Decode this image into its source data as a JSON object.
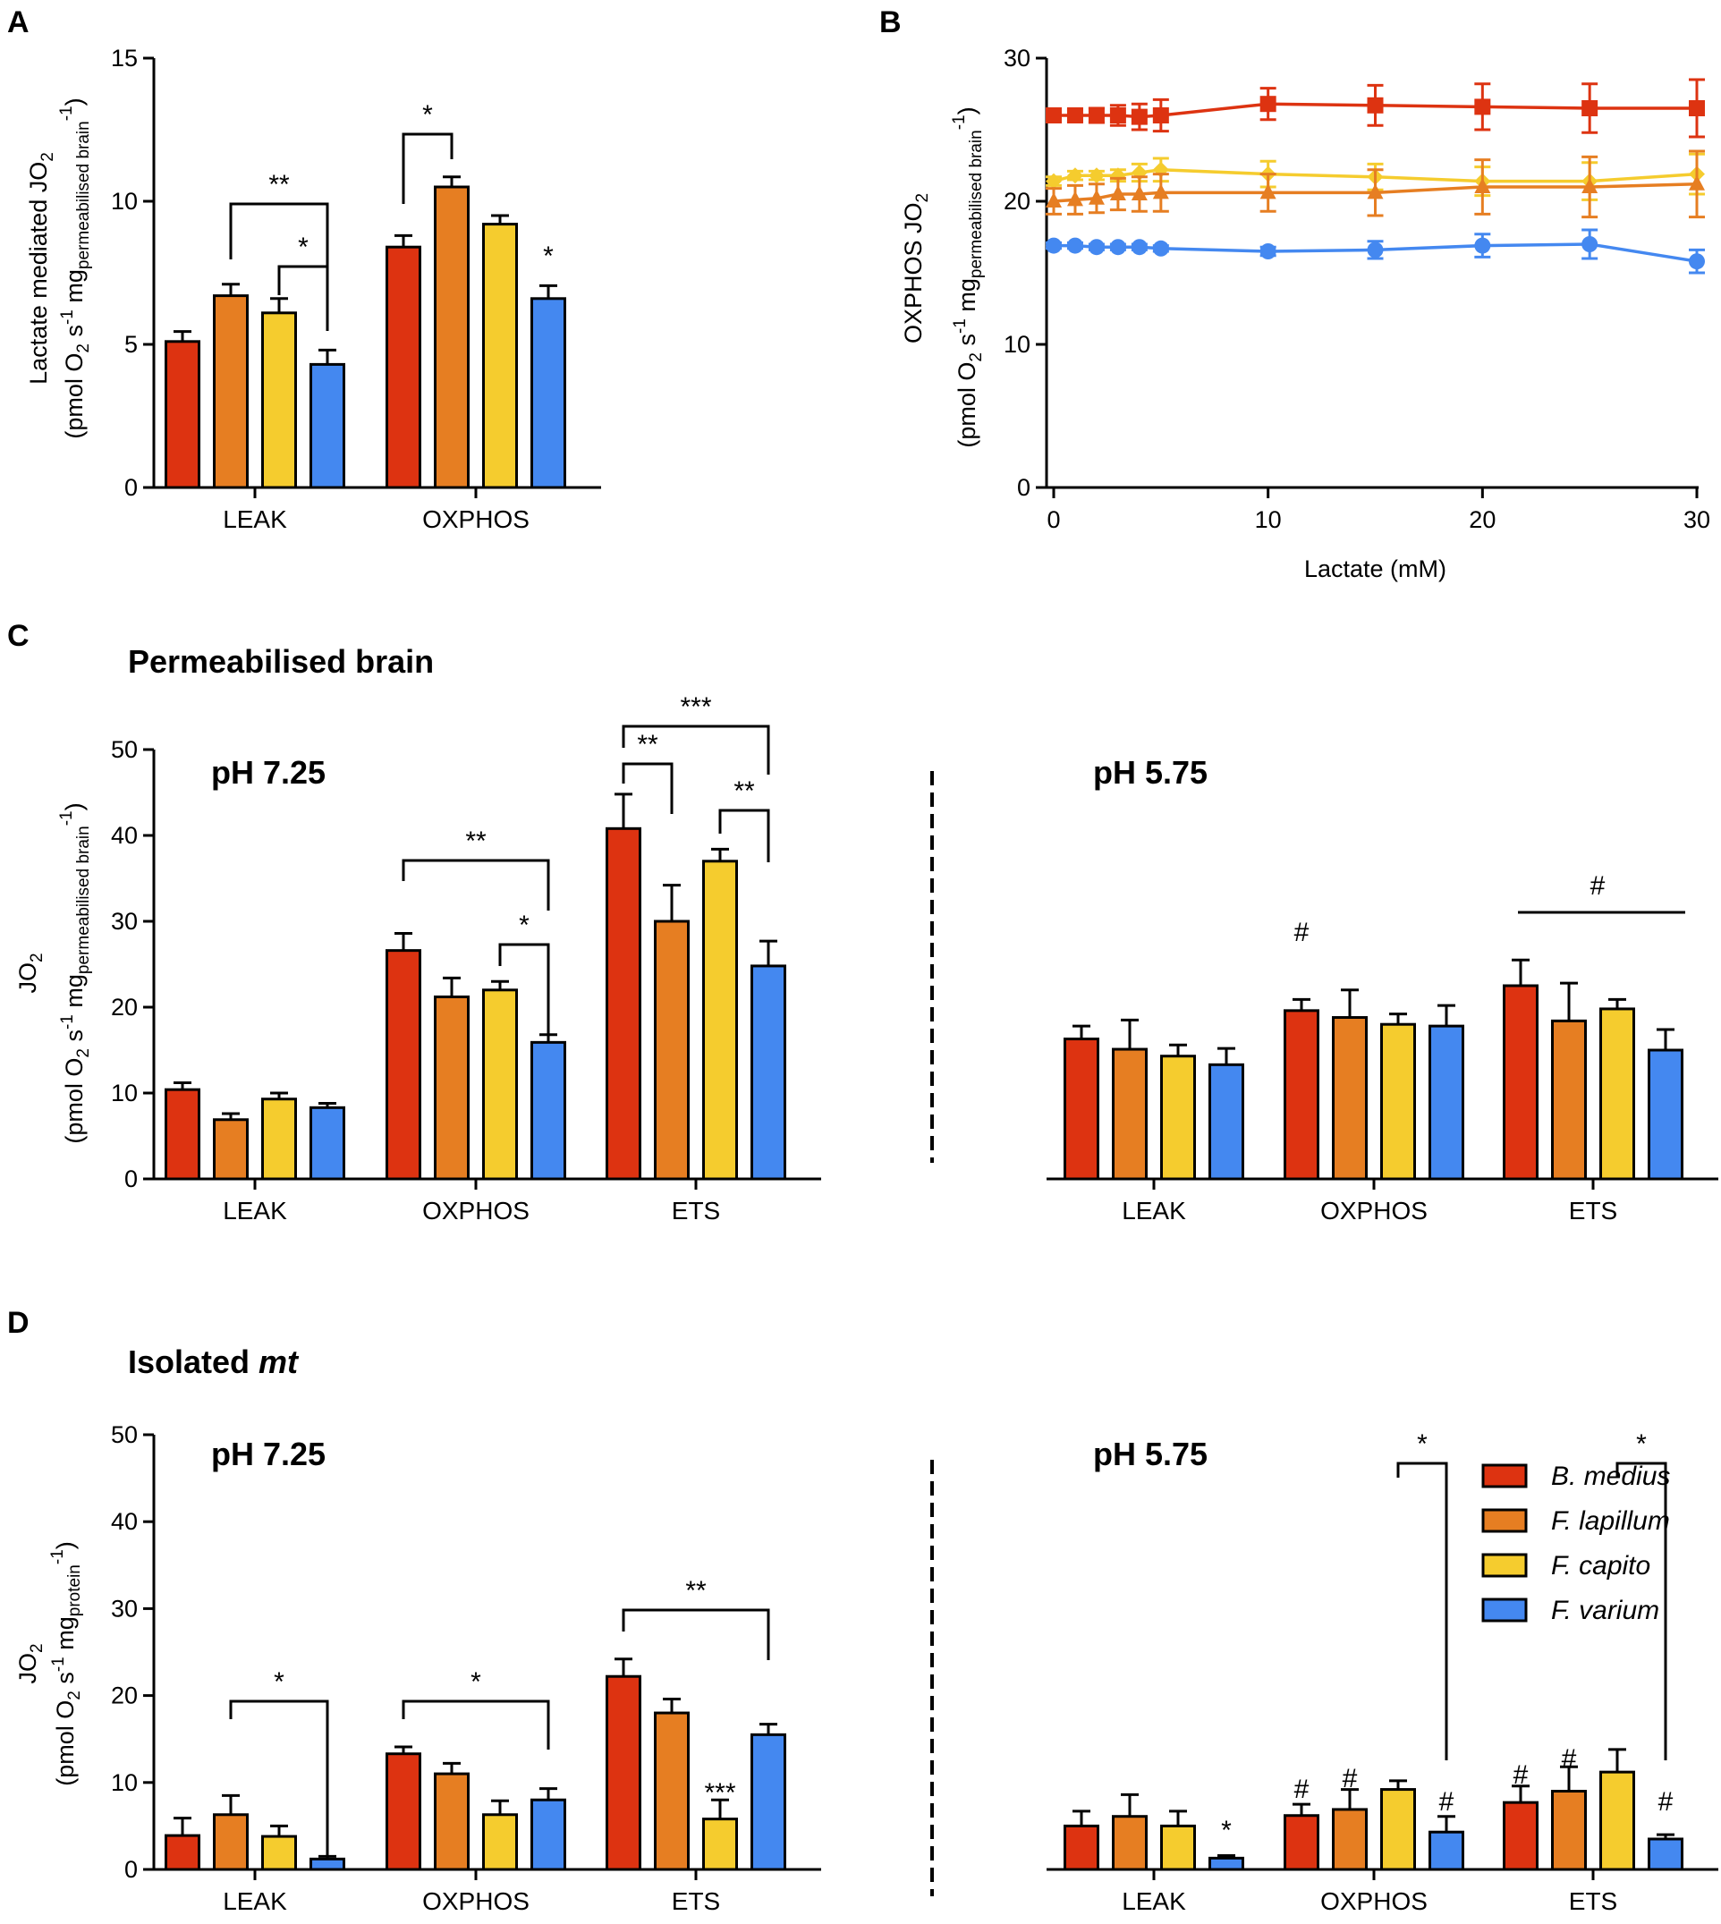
{
  "colors": {
    "B. medius": "#dd3311",
    "F. lapillum": "#e67e22",
    "F. capito": "#f5cc2e",
    "F. varium": "#4488f0"
  },
  "species": [
    "B. medius",
    "F. lapillum",
    "F. capito",
    "F. varium"
  ],
  "labels": {
    "panel_a": "A",
    "panel_b": "B",
    "panel_c": "C",
    "panel_d": "D",
    "title_c": "Permeabilised brain",
    "title_d_main": "Isolated ",
    "title_d_italic": "mt",
    "ph_high": "pH 7.25",
    "ph_low": "pH 5.75"
  },
  "ylabels": {
    "a_line1_pre": "Lactate mediated JO",
    "a_line1_sub": "2",
    "a_line2_pre": "(pmol O",
    "a_line2_sub": "2",
    "a_line2_mid": " s",
    "a_line2_sup": "-1",
    "a_line2_mg": " mg",
    "a_line2_mgsub": "permeabilised brain",
    "a_line2_sup2": "-1",
    "a_line2_end": ")",
    "b_line1_pre": "OXPHOS JO",
    "b_line1_sub": "2",
    "c_line1_pre": "JO",
    "c_line1_sub": "2",
    "d_line2_mgsub": "protein"
  },
  "chart_data": [
    {
      "id": "A",
      "type": "bar",
      "ylabel": "Lactate mediated JO2 (pmol O2 s-1 mg permeabilised brain -1)",
      "ylim": [
        0,
        15
      ],
      "yticks": [
        "0",
        "5",
        "10",
        "15"
      ],
      "categories": [
        "LEAK",
        "OXPHOS"
      ],
      "series": [
        {
          "name": "B. medius",
          "values": [
            5.1,
            8.4
          ],
          "errors": [
            0.35,
            0.4
          ]
        },
        {
          "name": "F. lapillum",
          "values": [
            6.7,
            10.5
          ],
          "errors": [
            0.4,
            0.35
          ]
        },
        {
          "name": "F. capito",
          "values": [
            6.1,
            9.2
          ],
          "errors": [
            0.5,
            0.3
          ]
        },
        {
          "name": "F. varium",
          "values": [
            4.3,
            6.6
          ],
          "errors": [
            0.5,
            0.45
          ]
        }
      ],
      "annotations": [
        "**",
        "*",
        "*",
        "*"
      ]
    },
    {
      "id": "B",
      "type": "line",
      "xlabel": "Lactate (mM)",
      "ylabel": "OXPHOS JO2 (pmol O2 s-1 mg permeabilised brain -1)",
      "xlim": [
        0,
        30
      ],
      "ylim": [
        0,
        30
      ],
      "xticks": [
        "0",
        "10",
        "20",
        "30"
      ],
      "yticks": [
        "0",
        "10",
        "20",
        "30"
      ],
      "x": [
        0,
        1,
        2,
        3,
        4,
        5,
        10,
        15,
        20,
        25,
        30
      ],
      "series": [
        {
          "name": "B. medius",
          "marker": "square",
          "values": [
            26.0,
            26.0,
            26.0,
            26.0,
            25.9,
            26.0,
            26.8,
            26.7,
            26.6,
            26.5,
            26.5
          ],
          "errors": [
            0.4,
            0.4,
            0.5,
            0.7,
            0.9,
            1.1,
            1.1,
            1.4,
            1.6,
            1.7,
            2.0
          ]
        },
        {
          "name": "F. lapillum",
          "marker": "triangle",
          "values": [
            20.0,
            20.1,
            20.2,
            20.5,
            20.5,
            20.6,
            20.6,
            20.6,
            21.0,
            21.0,
            21.2
          ],
          "errors": [
            0.9,
            1.0,
            1.0,
            1.1,
            1.2,
            1.3,
            1.3,
            1.6,
            1.9,
            2.1,
            2.3
          ]
        },
        {
          "name": "F. capito",
          "marker": "diamond",
          "values": [
            21.4,
            21.8,
            21.8,
            21.8,
            22.0,
            22.2,
            21.9,
            21.7,
            21.4,
            21.4,
            21.9
          ],
          "errors": [
            0.3,
            0.3,
            0.3,
            0.4,
            0.6,
            0.8,
            0.9,
            0.9,
            1.0,
            1.3,
            1.4
          ]
        },
        {
          "name": "F. varium",
          "marker": "circle",
          "values": [
            16.9,
            16.9,
            16.8,
            16.8,
            16.8,
            16.7,
            16.5,
            16.6,
            16.9,
            17.0,
            15.8
          ],
          "errors": [
            0.2,
            0.2,
            0.2,
            0.2,
            0.2,
            0.2,
            0.3,
            0.6,
            0.8,
            1.0,
            0.8
          ]
        }
      ]
    },
    {
      "id": "C-pH7.25",
      "type": "bar",
      "title": "pH 7.25",
      "ylabel": "JO2 (pmol O2 s-1 mg permeabilised brain -1)",
      "ylim": [
        0,
        50
      ],
      "yticks": [
        "0",
        "10",
        "20",
        "30",
        "40",
        "50"
      ],
      "categories": [
        "LEAK",
        "OXPHOS",
        "ETS"
      ],
      "series": [
        {
          "name": "B. medius",
          "values": [
            10.4,
            26.6,
            40.8
          ],
          "errors": [
            0.8,
            2.0,
            4.0
          ]
        },
        {
          "name": "F. lapillum",
          "values": [
            6.9,
            21.2,
            30.0
          ],
          "errors": [
            0.7,
            2.2,
            4.2
          ]
        },
        {
          "name": "F. capito",
          "values": [
            9.3,
            22.0,
            37.0
          ],
          "errors": [
            0.7,
            1.0,
            1.4
          ]
        },
        {
          "name": "F. varium",
          "values": [
            8.3,
            15.9,
            24.8
          ],
          "errors": [
            0.5,
            0.9,
            2.9
          ]
        }
      ],
      "annotations": [
        "**",
        "*",
        "***",
        "**",
        "**"
      ]
    },
    {
      "id": "C-pH5.75",
      "type": "bar",
      "title": "pH 5.75",
      "ylim": [
        0,
        50
      ],
      "categories": [
        "LEAK",
        "OXPHOS",
        "ETS"
      ],
      "series": [
        {
          "name": "B. medius",
          "values": [
            16.3,
            19.6,
            22.5
          ],
          "errors": [
            1.5,
            1.3,
            3.0
          ]
        },
        {
          "name": "F. lapillum",
          "values": [
            15.1,
            18.8,
            18.4
          ],
          "errors": [
            3.4,
            3.2,
            4.4
          ]
        },
        {
          "name": "F. capito",
          "values": [
            14.3,
            18.0,
            19.8
          ],
          "errors": [
            1.3,
            1.2,
            1.1
          ]
        },
        {
          "name": "F. varium",
          "values": [
            13.3,
            17.8,
            15.0
          ],
          "errors": [
            1.9,
            2.4,
            2.4
          ]
        }
      ],
      "annotations": [
        "#",
        "#"
      ]
    },
    {
      "id": "D-pH7.25",
      "type": "bar",
      "title": "pH 7.25",
      "ylabel": "JO2 (pmol O2 s-1 mg protein -1)",
      "ylim": [
        0,
        50
      ],
      "yticks": [
        "0",
        "10",
        "20",
        "30",
        "40",
        "50"
      ],
      "categories": [
        "LEAK",
        "OXPHOS",
        "ETS"
      ],
      "series": [
        {
          "name": "B. medius",
          "values": [
            3.9,
            13.3,
            22.2
          ],
          "errors": [
            2.0,
            0.8,
            2.0
          ]
        },
        {
          "name": "F. lapillum",
          "values": [
            6.3,
            11.0,
            18.0
          ],
          "errors": [
            2.2,
            1.2,
            1.6
          ]
        },
        {
          "name": "F. capito",
          "values": [
            3.8,
            6.3,
            5.8
          ],
          "errors": [
            1.2,
            1.6,
            2.2
          ]
        },
        {
          "name": "F. varium",
          "values": [
            1.2,
            8.0,
            15.5
          ],
          "errors": [
            0.3,
            1.3,
            1.2
          ]
        }
      ],
      "annotations": [
        "*",
        "*",
        "**",
        "***"
      ]
    },
    {
      "id": "D-pH5.75",
      "type": "bar",
      "title": "pH 5.75",
      "ylim": [
        0,
        50
      ],
      "categories": [
        "LEAK",
        "OXPHOS",
        "ETS"
      ],
      "series": [
        {
          "name": "B. medius",
          "values": [
            5.0,
            6.2,
            7.7
          ],
          "errors": [
            1.7,
            1.3,
            1.9
          ]
        },
        {
          "name": "F. lapillum",
          "values": [
            6.1,
            6.9,
            9.0
          ],
          "errors": [
            2.5,
            2.3,
            2.8
          ]
        },
        {
          "name": "F. capito",
          "values": [
            5.0,
            9.2,
            11.2
          ],
          "errors": [
            1.7,
            1.0,
            2.6
          ]
        },
        {
          "name": "F. varium",
          "values": [
            1.3,
            4.3,
            3.5
          ],
          "errors": [
            0.3,
            1.8,
            0.5
          ]
        }
      ],
      "annotations": [
        "*",
        "*",
        "*",
        "#",
        "#",
        "#",
        "#",
        "#",
        "#"
      ]
    }
  ]
}
